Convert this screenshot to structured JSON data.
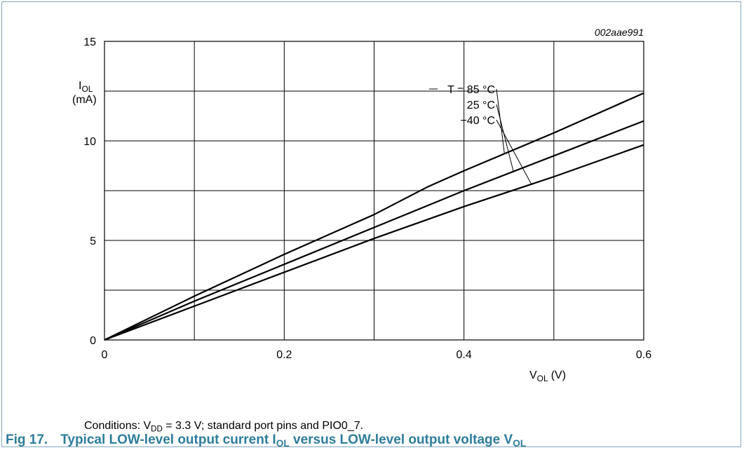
{
  "chart_data": {
    "type": "line",
    "figure_code": "002aae991",
    "ylabel_main": "I",
    "ylabel_sub": "OL",
    "ylabel_unit": "(mA)",
    "xlabel_main": "V",
    "xlabel_sub": "OL",
    "xlabel_unit": "(V)",
    "xlim": [
      0,
      0.6
    ],
    "ylim": [
      0,
      15
    ],
    "xticks": [
      0,
      0.2,
      0.4,
      0.6
    ],
    "xtick_labels": [
      "0",
      "0.2",
      "0.4",
      "0.6"
    ],
    "yticks": [
      0,
      5,
      10,
      15
    ],
    "ytick_labels": [
      "0",
      "5",
      "10",
      "15"
    ],
    "grid": true,
    "series": [
      {
        "name": "T = 85 °C",
        "x": [
          0,
          0.1,
          0.2,
          0.3,
          0.36,
          0.4,
          0.5,
          0.6
        ],
        "y": [
          0,
          2.2,
          4.3,
          6.3,
          7.7,
          8.5,
          10.4,
          12.4
        ]
      },
      {
        "name": "25 °C",
        "x": [
          0,
          0.1,
          0.2,
          0.3,
          0.4,
          0.5,
          0.6
        ],
        "y": [
          0,
          1.95,
          3.8,
          5.65,
          7.5,
          9.25,
          11.0
        ]
      },
      {
        "name": "−40 °C",
        "x": [
          0,
          0.1,
          0.2,
          0.3,
          0.4,
          0.5,
          0.6
        ],
        "y": [
          0,
          1.7,
          3.4,
          5.1,
          6.7,
          8.2,
          9.8
        ]
      }
    ]
  },
  "conditions": {
    "prefix": "Conditions: V",
    "sub": "DD",
    "rest": " = 3.3 V; standard port pins and PIO0_7."
  },
  "caption": {
    "fig": "Fig 17.",
    "part1": "Typical LOW-level output current I",
    "sub1": "OL",
    "part2": " versus LOW-level output voltage V",
    "sub2": "OL"
  }
}
